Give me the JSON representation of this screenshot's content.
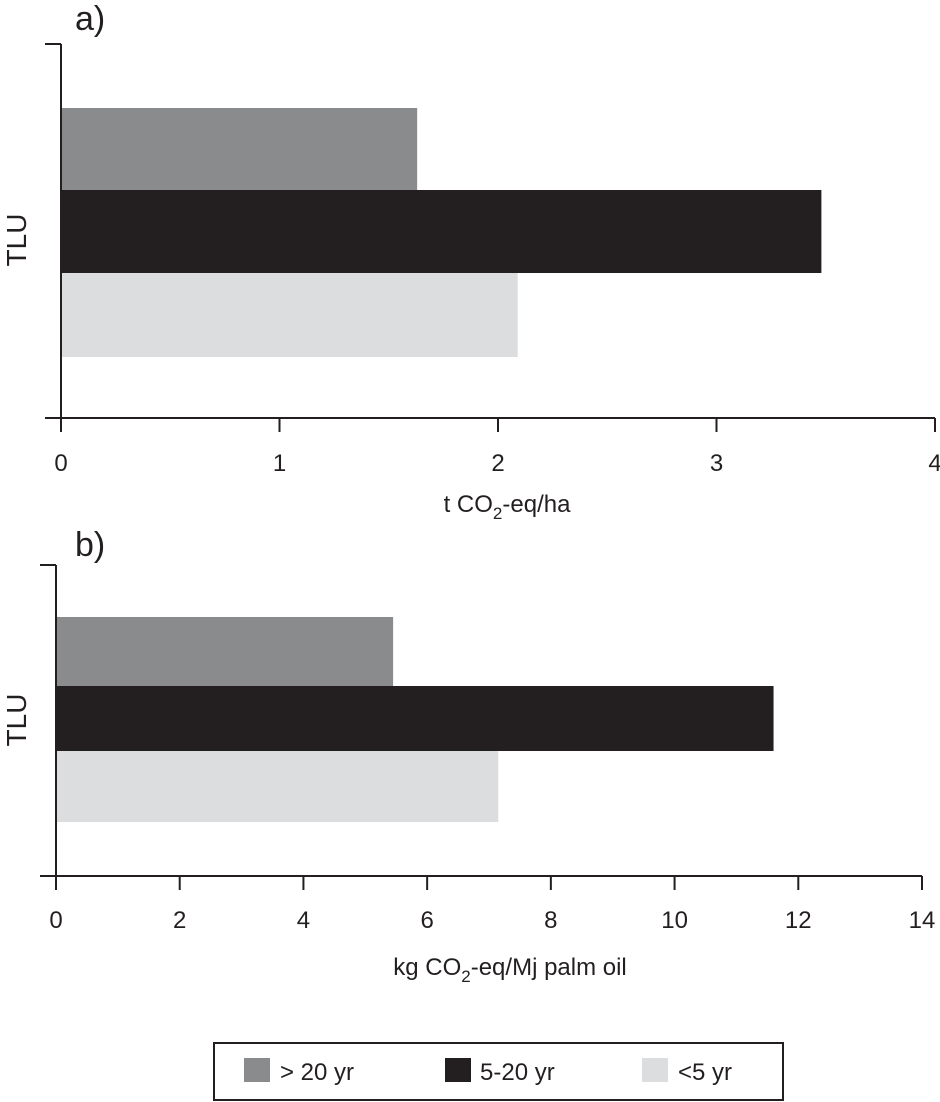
{
  "chart_data": [
    {
      "type": "bar",
      "orientation": "horizontal",
      "panel_label": "a)",
      "ylabel": "TLU",
      "xlabel": {
        "pre": "t CO",
        "sub": "2",
        "post": "-eq/ha"
      },
      "xlim": [
        0,
        4
      ],
      "xticks": [
        0,
        1,
        2,
        3,
        4
      ],
      "series": [
        {
          "name": "> 20 yr",
          "value": 1.63,
          "color": "#8a8b8d"
        },
        {
          "name": "5-20 yr",
          "value": 3.48,
          "color": "#231f20"
        },
        {
          "name": "<5 yr",
          "value": 2.09,
          "color": "#dcdddf"
        }
      ],
      "grid": false
    },
    {
      "type": "bar",
      "orientation": "horizontal",
      "panel_label": "b)",
      "ylabel": "TLU",
      "xlabel": {
        "pre": "kg CO",
        "sub": "2",
        "post": "-eq/Mj palm oil"
      },
      "xlim": [
        0,
        14
      ],
      "xticks": [
        0,
        2,
        4,
        6,
        8,
        10,
        12,
        14
      ],
      "series": [
        {
          "name": "> 20 yr",
          "value": 5.45,
          "color": "#8a8b8d"
        },
        {
          "name": "5-20 yr",
          "value": 11.6,
          "color": "#231f20"
        },
        {
          "name": "<5 yr",
          "value": 7.15,
          "color": "#dcdddf"
        }
      ],
      "grid": false
    }
  ],
  "legend": {
    "placement": "bottom-center",
    "items": [
      {
        "label": "> 20 yr",
        "color": "#8a8b8d"
      },
      {
        "label": "5-20 yr",
        "color": "#231f20"
      },
      {
        "label": "<5 yr",
        "color": "#dcdddf"
      }
    ]
  }
}
